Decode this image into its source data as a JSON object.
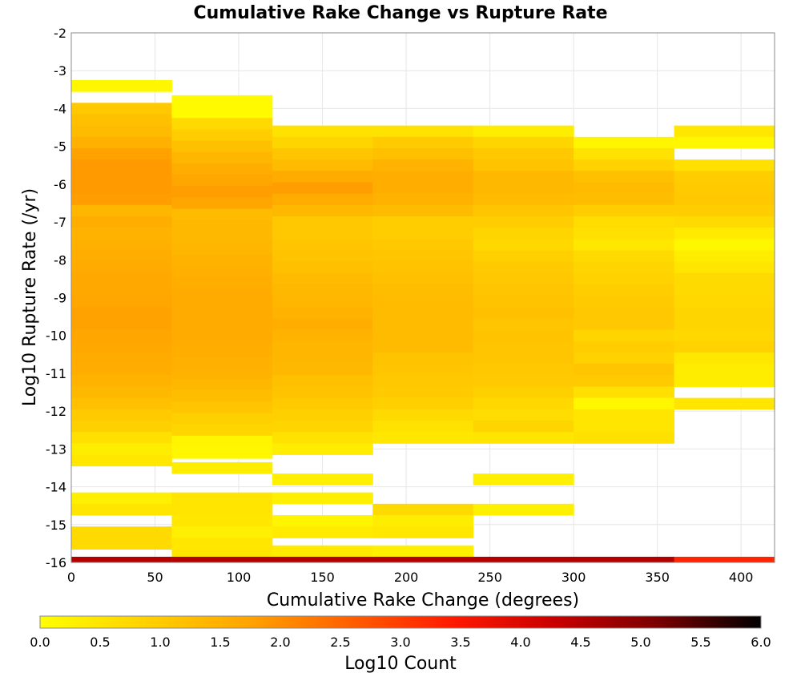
{
  "chart_data": {
    "type": "heatmap",
    "title": "Cumulative Rake Change vs Rupture Rate",
    "xlabel": "Cumulative Rake Change (degrees)",
    "ylabel": "Log10 Rupture Rate (/yr)",
    "colorbar_label": "Log10 Count",
    "xlim": [
      0,
      420
    ],
    "ylim": [
      -16,
      -2
    ],
    "x_ticks": [
      0,
      50,
      100,
      150,
      200,
      250,
      300,
      350,
      400
    ],
    "y_ticks": [
      -2,
      -3,
      -4,
      -5,
      -6,
      -7,
      -8,
      -9,
      -10,
      -11,
      -12,
      -13,
      -14,
      -15,
      -16
    ],
    "colorbar_ticks": [
      "0.0",
      "0.5",
      "1.0",
      "1.5",
      "2.0",
      "2.5",
      "3.0",
      "3.5",
      "4.0",
      "4.5",
      "5.0",
      "5.5",
      "6.0"
    ],
    "color_range": [
      0,
      6
    ],
    "colormap": [
      "#ffff00",
      "#ffd200",
      "#ffa500",
      "#ff6000",
      "#ff1a00",
      "#c80000",
      "#7a0000",
      "#000000"
    ],
    "grid": true,
    "x_bin_width": 60,
    "x_bin_starts": [
      0,
      60,
      120,
      180,
      240,
      300,
      360
    ],
    "y_bin_height": 0.3,
    "cells": [
      {
        "x": 0,
        "y": -3.4,
        "v": 0.15
      },
      {
        "x": 0,
        "y": -4.0,
        "v": 1.05
      },
      {
        "x": 0,
        "y": -4.3,
        "v": 1.2
      },
      {
        "x": 0,
        "y": -4.6,
        "v": 1.3
      },
      {
        "x": 0,
        "y": -4.9,
        "v": 1.5
      },
      {
        "x": 0,
        "y": -5.2,
        "v": 1.75
      },
      {
        "x": 0,
        "y": -5.5,
        "v": 1.85
      },
      {
        "x": 0,
        "y": -5.8,
        "v": 1.85
      },
      {
        "x": 0,
        "y": -6.1,
        "v": 1.85
      },
      {
        "x": 0,
        "y": -6.4,
        "v": 1.8
      },
      {
        "x": 0,
        "y": -6.7,
        "v": 1.4
      },
      {
        "x": 0,
        "y": -7.0,
        "v": 1.55
      },
      {
        "x": 0,
        "y": -7.3,
        "v": 1.45
      },
      {
        "x": 0,
        "y": -7.6,
        "v": 1.5
      },
      {
        "x": 0,
        "y": -7.9,
        "v": 1.55
      },
      {
        "x": 0,
        "y": -8.2,
        "v": 1.6
      },
      {
        "x": 0,
        "y": -8.5,
        "v": 1.65
      },
      {
        "x": 0,
        "y": -8.8,
        "v": 1.65
      },
      {
        "x": 0,
        "y": -9.1,
        "v": 1.7
      },
      {
        "x": 0,
        "y": -9.4,
        "v": 1.75
      },
      {
        "x": 0,
        "y": -9.7,
        "v": 1.75
      },
      {
        "x": 0,
        "y": -10.0,
        "v": 1.7
      },
      {
        "x": 0,
        "y": -10.3,
        "v": 1.65
      },
      {
        "x": 0,
        "y": -10.6,
        "v": 1.6
      },
      {
        "x": 0,
        "y": -10.9,
        "v": 1.55
      },
      {
        "x": 0,
        "y": -11.2,
        "v": 1.45
      },
      {
        "x": 0,
        "y": -11.5,
        "v": 1.35
      },
      {
        "x": 0,
        "y": -11.8,
        "v": 1.2
      },
      {
        "x": 0,
        "y": -12.1,
        "v": 1.0
      },
      {
        "x": 0,
        "y": -12.4,
        "v": 0.9
      },
      {
        "x": 0,
        "y": -12.7,
        "v": 0.6
      },
      {
        "x": 0,
        "y": -13.0,
        "v": 0.35
      },
      {
        "x": 0,
        "y": -13.3,
        "v": 0.45
      },
      {
        "x": 0,
        "y": -14.3,
        "v": 0.3
      },
      {
        "x": 0,
        "y": -14.6,
        "v": 0.5
      },
      {
        "x": 0,
        "y": -15.2,
        "v": 0.7
      },
      {
        "x": 0,
        "y": -15.5,
        "v": 0.7
      },
      {
        "x": 0,
        "y": -16.0,
        "v": 4.5
      },
      {
        "x": 60,
        "y": -3.8,
        "v": 0.1
      },
      {
        "x": 60,
        "y": -4.1,
        "v": 0.1
      },
      {
        "x": 60,
        "y": -4.4,
        "v": 0.7
      },
      {
        "x": 60,
        "y": -4.7,
        "v": 0.95
      },
      {
        "x": 60,
        "y": -5.0,
        "v": 1.2
      },
      {
        "x": 60,
        "y": -5.3,
        "v": 1.4
      },
      {
        "x": 60,
        "y": -5.6,
        "v": 1.55
      },
      {
        "x": 60,
        "y": -5.9,
        "v": 1.7
      },
      {
        "x": 60,
        "y": -6.2,
        "v": 1.8
      },
      {
        "x": 60,
        "y": -6.5,
        "v": 1.7
      },
      {
        "x": 60,
        "y": -6.8,
        "v": 1.3
      },
      {
        "x": 60,
        "y": -7.1,
        "v": 1.35
      },
      {
        "x": 60,
        "y": -7.4,
        "v": 1.35
      },
      {
        "x": 60,
        "y": -7.7,
        "v": 1.4
      },
      {
        "x": 60,
        "y": -8.0,
        "v": 1.45
      },
      {
        "x": 60,
        "y": -8.3,
        "v": 1.5
      },
      {
        "x": 60,
        "y": -8.6,
        "v": 1.55
      },
      {
        "x": 60,
        "y": -8.9,
        "v": 1.6
      },
      {
        "x": 60,
        "y": -9.2,
        "v": 1.6
      },
      {
        "x": 60,
        "y": -9.5,
        "v": 1.6
      },
      {
        "x": 60,
        "y": -9.8,
        "v": 1.6
      },
      {
        "x": 60,
        "y": -10.1,
        "v": 1.6
      },
      {
        "x": 60,
        "y": -10.4,
        "v": 1.55
      },
      {
        "x": 60,
        "y": -10.7,
        "v": 1.5
      },
      {
        "x": 60,
        "y": -11.0,
        "v": 1.45
      },
      {
        "x": 60,
        "y": -11.3,
        "v": 1.35
      },
      {
        "x": 60,
        "y": -11.6,
        "v": 1.25
      },
      {
        "x": 60,
        "y": -11.9,
        "v": 1.1
      },
      {
        "x": 60,
        "y": -12.2,
        "v": 0.9
      },
      {
        "x": 60,
        "y": -12.5,
        "v": 0.8
      },
      {
        "x": 60,
        "y": -12.8,
        "v": 0.2
      },
      {
        "x": 60,
        "y": -13.1,
        "v": 0.15
      },
      {
        "x": 60,
        "y": -13.5,
        "v": 0.35
      },
      {
        "x": 60,
        "y": -14.3,
        "v": 0.5
      },
      {
        "x": 60,
        "y": -14.6,
        "v": 0.5
      },
      {
        "x": 60,
        "y": -14.9,
        "v": 0.45
      },
      {
        "x": 60,
        "y": -15.2,
        "v": 0.3
      },
      {
        "x": 60,
        "y": -15.5,
        "v": 0.45
      },
      {
        "x": 60,
        "y": -15.8,
        "v": 0.5
      },
      {
        "x": 60,
        "y": -16.0,
        "v": 4.5
      },
      {
        "x": 120,
        "y": -4.6,
        "v": 0.55
      },
      {
        "x": 120,
        "y": -4.9,
        "v": 0.8
      },
      {
        "x": 120,
        "y": -5.2,
        "v": 1.1
      },
      {
        "x": 120,
        "y": -5.5,
        "v": 1.3
      },
      {
        "x": 120,
        "y": -5.8,
        "v": 1.6
      },
      {
        "x": 120,
        "y": -6.1,
        "v": 1.8
      },
      {
        "x": 120,
        "y": -6.4,
        "v": 1.6
      },
      {
        "x": 120,
        "y": -6.7,
        "v": 1.35
      },
      {
        "x": 120,
        "y": -7.0,
        "v": 1.05
      },
      {
        "x": 120,
        "y": -7.3,
        "v": 1.05
      },
      {
        "x": 120,
        "y": -7.6,
        "v": 1.1
      },
      {
        "x": 120,
        "y": -7.9,
        "v": 1.15
      },
      {
        "x": 120,
        "y": -8.2,
        "v": 1.2
      },
      {
        "x": 120,
        "y": -8.5,
        "v": 1.3
      },
      {
        "x": 120,
        "y": -8.8,
        "v": 1.35
      },
      {
        "x": 120,
        "y": -9.1,
        "v": 1.4
      },
      {
        "x": 120,
        "y": -9.4,
        "v": 1.45
      },
      {
        "x": 120,
        "y": -9.7,
        "v": 1.55
      },
      {
        "x": 120,
        "y": -10.0,
        "v": 1.45
      },
      {
        "x": 120,
        "y": -10.3,
        "v": 1.4
      },
      {
        "x": 120,
        "y": -10.6,
        "v": 1.4
      },
      {
        "x": 120,
        "y": -10.9,
        "v": 1.35
      },
      {
        "x": 120,
        "y": -11.2,
        "v": 1.2
      },
      {
        "x": 120,
        "y": -11.5,
        "v": 1.15
      },
      {
        "x": 120,
        "y": -11.8,
        "v": 1.0
      },
      {
        "x": 120,
        "y": -12.1,
        "v": 0.9
      },
      {
        "x": 120,
        "y": -12.4,
        "v": 0.8
      },
      {
        "x": 120,
        "y": -12.7,
        "v": 0.55
      },
      {
        "x": 120,
        "y": -13.0,
        "v": 0.35
      },
      {
        "x": 120,
        "y": -13.8,
        "v": 0.3
      },
      {
        "x": 120,
        "y": -14.3,
        "v": 0.3
      },
      {
        "x": 120,
        "y": -14.9,
        "v": 0.2
      },
      {
        "x": 120,
        "y": -15.2,
        "v": 0.4
      },
      {
        "x": 120,
        "y": -15.7,
        "v": 0.4
      },
      {
        "x": 120,
        "y": -16.0,
        "v": 4.5
      },
      {
        "x": 180,
        "y": -4.6,
        "v": 0.55
      },
      {
        "x": 180,
        "y": -4.9,
        "v": 1.0
      },
      {
        "x": 180,
        "y": -5.2,
        "v": 1.2
      },
      {
        "x": 180,
        "y": -5.5,
        "v": 1.45
      },
      {
        "x": 180,
        "y": -5.8,
        "v": 1.55
      },
      {
        "x": 180,
        "y": -6.1,
        "v": 1.55
      },
      {
        "x": 180,
        "y": -6.4,
        "v": 1.45
      },
      {
        "x": 180,
        "y": -6.7,
        "v": 1.3
      },
      {
        "x": 180,
        "y": -7.0,
        "v": 0.95
      },
      {
        "x": 180,
        "y": -7.3,
        "v": 0.95
      },
      {
        "x": 180,
        "y": -7.6,
        "v": 1.05
      },
      {
        "x": 180,
        "y": -7.9,
        "v": 1.1
      },
      {
        "x": 180,
        "y": -8.2,
        "v": 1.15
      },
      {
        "x": 180,
        "y": -8.5,
        "v": 1.2
      },
      {
        "x": 180,
        "y": -8.8,
        "v": 1.25
      },
      {
        "x": 180,
        "y": -9.1,
        "v": 1.3
      },
      {
        "x": 180,
        "y": -9.4,
        "v": 1.3
      },
      {
        "x": 180,
        "y": -9.7,
        "v": 1.3
      },
      {
        "x": 180,
        "y": -10.0,
        "v": 1.3
      },
      {
        "x": 180,
        "y": -10.3,
        "v": 1.3
      },
      {
        "x": 180,
        "y": -10.6,
        "v": 1.15
      },
      {
        "x": 180,
        "y": -10.9,
        "v": 1.1
      },
      {
        "x": 180,
        "y": -11.2,
        "v": 1.05
      },
      {
        "x": 180,
        "y": -11.5,
        "v": 1.0
      },
      {
        "x": 180,
        "y": -11.8,
        "v": 0.9
      },
      {
        "x": 180,
        "y": -12.1,
        "v": 0.7
      },
      {
        "x": 180,
        "y": -12.4,
        "v": 0.55
      },
      {
        "x": 180,
        "y": -12.7,
        "v": 0.45
      },
      {
        "x": 180,
        "y": -14.6,
        "v": 0.7
      },
      {
        "x": 180,
        "y": -14.9,
        "v": 0.35
      },
      {
        "x": 180,
        "y": -15.2,
        "v": 0.45
      },
      {
        "x": 180,
        "y": -15.7,
        "v": 0.3
      },
      {
        "x": 180,
        "y": -16.0,
        "v": 4.5
      },
      {
        "x": 240,
        "y": -4.6,
        "v": 0.35
      },
      {
        "x": 240,
        "y": -4.9,
        "v": 0.8
      },
      {
        "x": 240,
        "y": -5.2,
        "v": 1.05
      },
      {
        "x": 240,
        "y": -5.5,
        "v": 1.15
      },
      {
        "x": 240,
        "y": -5.8,
        "v": 1.35
      },
      {
        "x": 240,
        "y": -6.1,
        "v": 1.35
      },
      {
        "x": 240,
        "y": -6.4,
        "v": 1.3
      },
      {
        "x": 240,
        "y": -6.7,
        "v": 1.1
      },
      {
        "x": 240,
        "y": -7.0,
        "v": 0.95
      },
      {
        "x": 240,
        "y": -7.3,
        "v": 0.8
      },
      {
        "x": 240,
        "y": -7.6,
        "v": 0.75
      },
      {
        "x": 240,
        "y": -7.9,
        "v": 0.9
      },
      {
        "x": 240,
        "y": -8.2,
        "v": 1.0
      },
      {
        "x": 240,
        "y": -8.5,
        "v": 1.05
      },
      {
        "x": 240,
        "y": -8.8,
        "v": 1.1
      },
      {
        "x": 240,
        "y": -9.1,
        "v": 1.15
      },
      {
        "x": 240,
        "y": -9.4,
        "v": 1.2
      },
      {
        "x": 240,
        "y": -9.7,
        "v": 1.1
      },
      {
        "x": 240,
        "y": -10.0,
        "v": 1.15
      },
      {
        "x": 240,
        "y": -10.3,
        "v": 1.1
      },
      {
        "x": 240,
        "y": -10.6,
        "v": 1.1
      },
      {
        "x": 240,
        "y": -10.9,
        "v": 1.05
      },
      {
        "x": 240,
        "y": -11.2,
        "v": 1.0
      },
      {
        "x": 240,
        "y": -11.5,
        "v": 0.9
      },
      {
        "x": 240,
        "y": -11.8,
        "v": 0.75
      },
      {
        "x": 240,
        "y": -12.1,
        "v": 0.65
      },
      {
        "x": 240,
        "y": -12.4,
        "v": 0.8
      },
      {
        "x": 240,
        "y": -12.7,
        "v": 0.5
      },
      {
        "x": 240,
        "y": -13.8,
        "v": 0.3
      },
      {
        "x": 240,
        "y": -14.6,
        "v": 0.3
      },
      {
        "x": 240,
        "y": -16.0,
        "v": 4.5
      },
      {
        "x": 300,
        "y": -4.9,
        "v": 0.2
      },
      {
        "x": 300,
        "y": -5.2,
        "v": 0.55
      },
      {
        "x": 300,
        "y": -5.5,
        "v": 0.85
      },
      {
        "x": 300,
        "y": -5.8,
        "v": 1.2
      },
      {
        "x": 300,
        "y": -6.1,
        "v": 1.3
      },
      {
        "x": 300,
        "y": -6.4,
        "v": 1.25
      },
      {
        "x": 300,
        "y": -6.7,
        "v": 0.95
      },
      {
        "x": 300,
        "y": -7.0,
        "v": 0.65
      },
      {
        "x": 300,
        "y": -7.3,
        "v": 0.6
      },
      {
        "x": 300,
        "y": -7.6,
        "v": 0.45
      },
      {
        "x": 300,
        "y": -7.9,
        "v": 0.7
      },
      {
        "x": 300,
        "y": -8.2,
        "v": 0.8
      },
      {
        "x": 300,
        "y": -8.5,
        "v": 0.85
      },
      {
        "x": 300,
        "y": -8.8,
        "v": 0.95
      },
      {
        "x": 300,
        "y": -9.1,
        "v": 1.0
      },
      {
        "x": 300,
        "y": -9.4,
        "v": 1.05
      },
      {
        "x": 300,
        "y": -9.7,
        "v": 1.05
      },
      {
        "x": 300,
        "y": -10.0,
        "v": 0.8
      },
      {
        "x": 300,
        "y": -10.3,
        "v": 0.95
      },
      {
        "x": 300,
        "y": -10.6,
        "v": 0.85
      },
      {
        "x": 300,
        "y": -10.9,
        "v": 1.1
      },
      {
        "x": 300,
        "y": -11.2,
        "v": 1.0
      },
      {
        "x": 300,
        "y": -11.5,
        "v": 0.6
      },
      {
        "x": 300,
        "y": -11.8,
        "v": 0.15
      },
      {
        "x": 300,
        "y": -12.1,
        "v": 0.5
      },
      {
        "x": 300,
        "y": -12.4,
        "v": 0.5
      },
      {
        "x": 300,
        "y": -12.7,
        "v": 0.6
      },
      {
        "x": 300,
        "y": -16.0,
        "v": 4.5
      },
      {
        "x": 360,
        "y": -4.6,
        "v": 0.45
      },
      {
        "x": 360,
        "y": -4.9,
        "v": 0.15
      },
      {
        "x": 360,
        "y": -5.5,
        "v": 0.6
      },
      {
        "x": 360,
        "y": -5.8,
        "v": 0.95
      },
      {
        "x": 360,
        "y": -6.1,
        "v": 1.0
      },
      {
        "x": 360,
        "y": -6.4,
        "v": 1.05
      },
      {
        "x": 360,
        "y": -6.7,
        "v": 0.95
      },
      {
        "x": 360,
        "y": -7.0,
        "v": 0.7
      },
      {
        "x": 360,
        "y": -7.3,
        "v": 0.4
      },
      {
        "x": 360,
        "y": -7.6,
        "v": 0.15
      },
      {
        "x": 360,
        "y": -7.9,
        "v": 0.35
      },
      {
        "x": 360,
        "y": -8.2,
        "v": 0.5
      },
      {
        "x": 360,
        "y": -8.5,
        "v": 0.7
      },
      {
        "x": 360,
        "y": -8.8,
        "v": 0.7
      },
      {
        "x": 360,
        "y": -9.1,
        "v": 0.75
      },
      {
        "x": 360,
        "y": -9.4,
        "v": 0.8
      },
      {
        "x": 360,
        "y": -9.7,
        "v": 0.8
      },
      {
        "x": 360,
        "y": -10.0,
        "v": 0.75
      },
      {
        "x": 360,
        "y": -10.3,
        "v": 0.85
      },
      {
        "x": 360,
        "y": -10.6,
        "v": 0.45
      },
      {
        "x": 360,
        "y": -10.9,
        "v": 0.35
      },
      {
        "x": 360,
        "y": -11.2,
        "v": 0.35
      },
      {
        "x": 360,
        "y": -11.8,
        "v": 0.5
      },
      {
        "x": 360,
        "y": -16.0,
        "v": 3.3
      }
    ]
  }
}
